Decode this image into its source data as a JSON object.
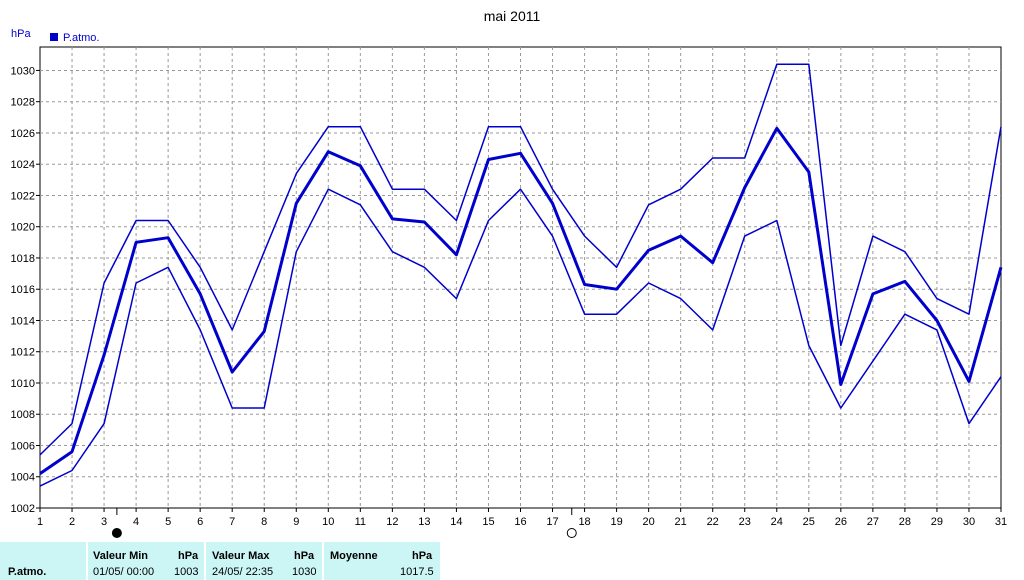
{
  "chart_data": {
    "type": "line",
    "title": "mai 2011",
    "ylabel": "hPa",
    "xlabel": "",
    "x": [
      1,
      2,
      3,
      4,
      5,
      6,
      7,
      8,
      9,
      10,
      11,
      12,
      13,
      14,
      15,
      16,
      17,
      18,
      19,
      20,
      21,
      22,
      23,
      24,
      25,
      26,
      27,
      28,
      29,
      30,
      31
    ],
    "ylim": [
      1002,
      1031.5
    ],
    "xlim": [
      1,
      31
    ],
    "yticks": [
      1002,
      1004,
      1006,
      1008,
      1010,
      1012,
      1014,
      1016,
      1018,
      1020,
      1022,
      1024,
      1026,
      1028,
      1030
    ],
    "grid": true,
    "legend": {
      "position": "top-left",
      "label": "P.atmo.",
      "color": "#0000cc"
    },
    "series": [
      {
        "name": "P.atmo.",
        "color": "#0000cc",
        "width": "thick",
        "values": [
          1004.2,
          1005.6,
          1011.8,
          1019.0,
          1019.3,
          1015.7,
          1010.7,
          1013.3,
          1021.5,
          1024.8,
          1023.9,
          1020.5,
          1020.3,
          1018.2,
          1024.3,
          1024.7,
          1021.5,
          1016.3,
          1016.0,
          1018.5,
          1019.4,
          1017.7,
          1022.5,
          1026.3,
          1023.5,
          1009.9,
          1015.7,
          1016.5,
          1014.0,
          1010.1,
          1017.4
        ]
      },
      {
        "color": "#0000cc",
        "width": "thin",
        "values": [
          1005.4,
          1007.4,
          1016.4,
          1020.4,
          1020.4,
          1017.4,
          1013.4,
          1018.4,
          1023.4,
          1026.4,
          1026.4,
          1022.4,
          1022.4,
          1020.4,
          1026.4,
          1026.4,
          1022.4,
          1019.4,
          1017.4,
          1021.4,
          1022.4,
          1024.4,
          1024.4,
          1030.4,
          1030.4,
          1012.4,
          1019.4,
          1018.4,
          1015.4,
          1014.4,
          1026.4
        ]
      },
      {
        "color": "#0000cc",
        "width": "thin",
        "values": [
          1003.4,
          1004.4,
          1007.4,
          1016.4,
          1017.4,
          1013.4,
          1008.4,
          1008.4,
          1018.4,
          1022.4,
          1021.4,
          1018.4,
          1017.4,
          1015.4,
          1020.4,
          1022.4,
          1019.4,
          1014.4,
          1014.4,
          1016.4,
          1015.4,
          1013.4,
          1019.4,
          1020.4,
          1012.4,
          1008.4,
          1011.4,
          1014.4,
          1013.4,
          1007.4,
          1010.4
        ]
      }
    ],
    "moon_markers": [
      {
        "day": 3.4,
        "phase": "new-moon"
      },
      {
        "day": 17.6,
        "phase": "full-moon"
      }
    ]
  },
  "footer": {
    "row_label": "P.atmo.",
    "min_header": "Valeur Min",
    "min_unit": "hPa",
    "min_date": "01/05/  00:00",
    "min_value": "1003",
    "max_header": "Valeur Max",
    "max_unit": "hPa",
    "max_date": "24/05/  22:35",
    "max_value": "1030",
    "avg_header": "Moyenne",
    "avg_unit": "hPa",
    "avg_value": "1017.5"
  }
}
